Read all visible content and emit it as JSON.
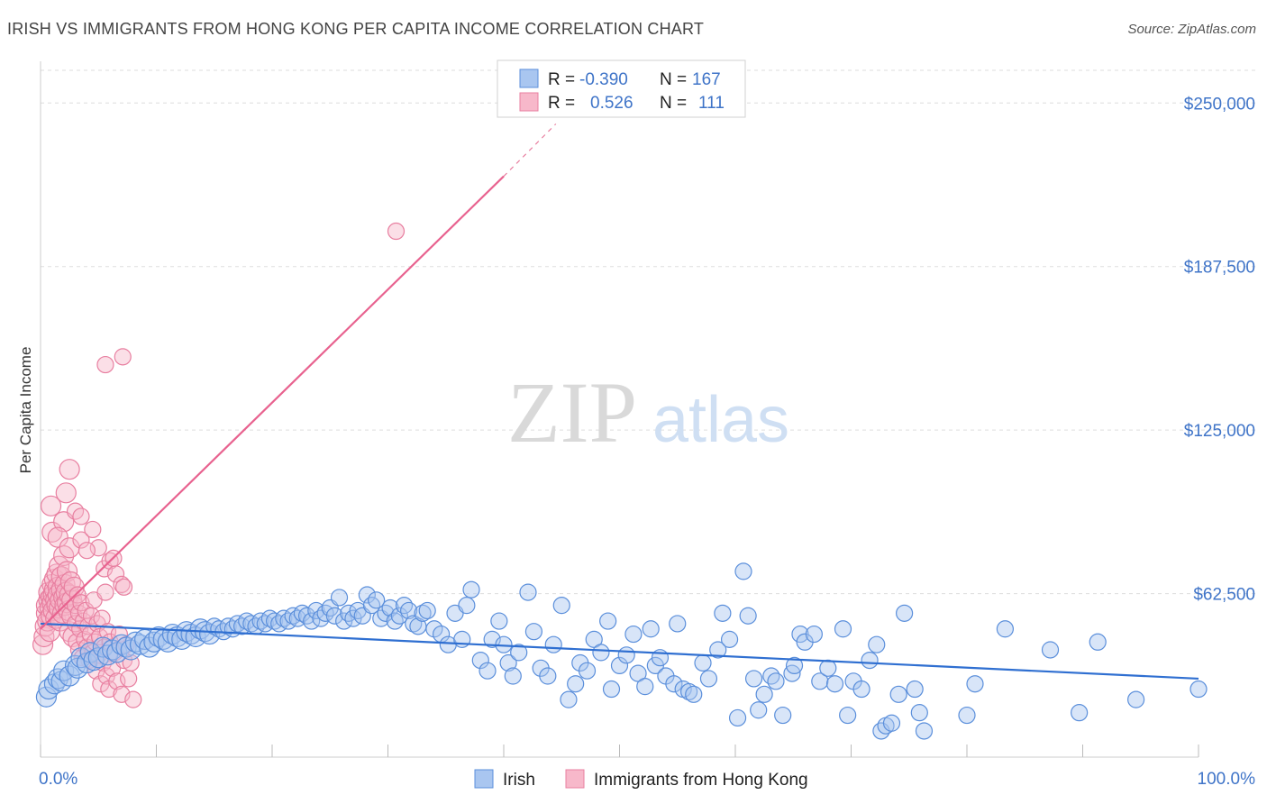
{
  "header": {
    "title": "IRISH VS IMMIGRANTS FROM HONG KONG PER CAPITA INCOME CORRELATION CHART",
    "source": "Source: ZipAtlas.com"
  },
  "watermark": {
    "zip": "ZIP",
    "atlas": "atlas"
  },
  "colors": {
    "irish_fill": "#a9c6f0",
    "irish_stroke": "#5b8fdb",
    "irish_line": "#2f6fd1",
    "hk_fill": "#f7b8ca",
    "hk_stroke": "#e87fa0",
    "hk_line": "#e8628f",
    "tick_text": "#3f74c8",
    "grid": "#dddddd"
  },
  "legend": {
    "rows": [
      {
        "r_label": "R =",
        "r_value": "-0.390",
        "n_label": "N =",
        "n_value": "167"
      },
      {
        "r_label": "R =",
        "r_value": "0.526",
        "n_label": "N =",
        "n_value": "111"
      }
    ],
    "bottom": [
      "Irish",
      "Immigrants from Hong Kong"
    ]
  },
  "chart_data": {
    "type": "scatter",
    "title": "IRISH VS IMMIGRANTS FROM HONG KONG PER CAPITA INCOME CORRELATION CHART",
    "xlabel": "",
    "ylabel": "Per Capita Income",
    "xlim": [
      0,
      100
    ],
    "ylim": [
      0,
      262500
    ],
    "x_tick_labels": [
      "0.0%",
      "100.0%"
    ],
    "y_ticks": [
      62500,
      125000,
      187500,
      250000
    ],
    "y_tick_labels": [
      "$62,500",
      "$125,000",
      "$187,500",
      "$250,000"
    ],
    "grid": "horizontal dashed",
    "legend_position": "top-center",
    "series": [
      {
        "name": "Irish",
        "r": -0.39,
        "n": 167,
        "trend": {
          "x": [
            0,
            100
          ],
          "y": [
            51000,
            30000
          ]
        },
        "points": [
          [
            0.5,
            23000
          ],
          [
            0.7,
            26000
          ],
          [
            1.2,
            28000
          ],
          [
            1.5,
            30000
          ],
          [
            1.8,
            29000
          ],
          [
            2.0,
            33000
          ],
          [
            2.5,
            31000
          ],
          [
            3.0,
            35000
          ],
          [
            3.2,
            34000
          ],
          [
            3.5,
            38000
          ],
          [
            4.0,
            36000
          ],
          [
            4.3,
            40000
          ],
          [
            4.6,
            37000
          ],
          [
            5.0,
            38000
          ],
          [
            5.4,
            42000
          ],
          [
            5.8,
            39000
          ],
          [
            6.2,
            41000
          ],
          [
            6.6,
            40000
          ],
          [
            7.0,
            43000
          ],
          [
            7.4,
            42000
          ],
          [
            7.8,
            41000
          ],
          [
            8.2,
            44000
          ],
          [
            8.6,
            43000
          ],
          [
            9.0,
            45000
          ],
          [
            9.4,
            42000
          ],
          [
            9.8,
            44000
          ],
          [
            10.2,
            46000
          ],
          [
            10.6,
            45000
          ],
          [
            11.0,
            44000
          ],
          [
            11.4,
            47000
          ],
          [
            11.8,
            46000
          ],
          [
            12.2,
            45000
          ],
          [
            12.6,
            48000
          ],
          [
            13.0,
            47000
          ],
          [
            13.4,
            46000
          ],
          [
            13.8,
            49000
          ],
          [
            14.2,
            48000
          ],
          [
            14.6,
            47000
          ],
          [
            15.0,
            50000
          ],
          [
            15.4,
            49000
          ],
          [
            15.8,
            48000
          ],
          [
            16.2,
            50000
          ],
          [
            16.6,
            49000
          ],
          [
            17.0,
            51000
          ],
          [
            17.4,
            50000
          ],
          [
            17.8,
            52000
          ],
          [
            18.2,
            51000
          ],
          [
            18.6,
            50000
          ],
          [
            19.0,
            52000
          ],
          [
            19.4,
            51000
          ],
          [
            19.8,
            53000
          ],
          [
            20.2,
            52000
          ],
          [
            20.6,
            51000
          ],
          [
            21.0,
            53000
          ],
          [
            21.4,
            52000
          ],
          [
            21.8,
            54000
          ],
          [
            22.2,
            53000
          ],
          [
            22.6,
            55000
          ],
          [
            23.0,
            54000
          ],
          [
            23.4,
            52000
          ],
          [
            23.8,
            56000
          ],
          [
            24.2,
            53000
          ],
          [
            24.6,
            55000
          ],
          [
            25.0,
            57000
          ],
          [
            25.4,
            54000
          ],
          [
            25.8,
            61000
          ],
          [
            26.2,
            52000
          ],
          [
            26.6,
            55000
          ],
          [
            27.0,
            53000
          ],
          [
            27.4,
            56000
          ],
          [
            27.8,
            54000
          ],
          [
            28.2,
            62000
          ],
          [
            28.6,
            58000
          ],
          [
            29.0,
            60000
          ],
          [
            29.4,
            53000
          ],
          [
            29.8,
            55000
          ],
          [
            30.2,
            57000
          ],
          [
            30.6,
            52000
          ],
          [
            31.0,
            54000
          ],
          [
            31.4,
            58000
          ],
          [
            31.8,
            56000
          ],
          [
            32.2,
            51000
          ],
          [
            32.6,
            50000
          ],
          [
            33.0,
            55000
          ],
          [
            33.4,
            56000
          ],
          [
            34.0,
            49000
          ],
          [
            34.6,
            47000
          ],
          [
            35.2,
            43000
          ],
          [
            35.8,
            55000
          ],
          [
            36.4,
            45000
          ],
          [
            36.8,
            58000
          ],
          [
            37.2,
            64000
          ],
          [
            38.0,
            37000
          ],
          [
            38.6,
            33000
          ],
          [
            39.0,
            45000
          ],
          [
            39.6,
            52000
          ],
          [
            40.0,
            43000
          ],
          [
            40.4,
            36000
          ],
          [
            40.8,
            31000
          ],
          [
            41.3,
            40000
          ],
          [
            42.1,
            63000
          ],
          [
            42.6,
            48000
          ],
          [
            43.2,
            34000
          ],
          [
            43.8,
            31000
          ],
          [
            44.3,
            43000
          ],
          [
            45.0,
            58000
          ],
          [
            45.6,
            22000
          ],
          [
            46.2,
            28000
          ],
          [
            46.6,
            36000
          ],
          [
            47.2,
            33000
          ],
          [
            47.8,
            45000
          ],
          [
            48.4,
            40000
          ],
          [
            49.0,
            52000
          ],
          [
            49.3,
            26000
          ],
          [
            50.0,
            35000
          ],
          [
            50.6,
            39000
          ],
          [
            51.2,
            47000
          ],
          [
            51.6,
            32000
          ],
          [
            52.2,
            27000
          ],
          [
            52.7,
            49000
          ],
          [
            53.1,
            35000
          ],
          [
            53.5,
            38000
          ],
          [
            54.0,
            31000
          ],
          [
            54.7,
            28000
          ],
          [
            55.0,
            51000
          ],
          [
            55.5,
            26000
          ],
          [
            56.0,
            25000
          ],
          [
            56.4,
            24000
          ],
          [
            57.2,
            36000
          ],
          [
            57.7,
            30000
          ],
          [
            58.5,
            41000
          ],
          [
            58.9,
            55000
          ],
          [
            59.5,
            45000
          ],
          [
            60.2,
            15000
          ],
          [
            60.7,
            71000
          ],
          [
            61.1,
            54000
          ],
          [
            61.6,
            30000
          ],
          [
            62.0,
            18000
          ],
          [
            62.5,
            24000
          ],
          [
            63.1,
            31000
          ],
          [
            63.5,
            29000
          ],
          [
            64.1,
            16000
          ],
          [
            64.9,
            32000
          ],
          [
            65.1,
            35000
          ],
          [
            65.6,
            47000
          ],
          [
            66.0,
            44000
          ],
          [
            66.8,
            47000
          ],
          [
            67.3,
            29000
          ],
          [
            68.0,
            34000
          ],
          [
            68.6,
            28000
          ],
          [
            69.3,
            49000
          ],
          [
            69.7,
            16000
          ],
          [
            70.2,
            29000
          ],
          [
            70.9,
            26000
          ],
          [
            71.6,
            37000
          ],
          [
            72.2,
            43000
          ],
          [
            72.6,
            10000
          ],
          [
            73.0,
            12000
          ],
          [
            73.5,
            13000
          ],
          [
            74.1,
            24000
          ],
          [
            74.6,
            55000
          ],
          [
            75.5,
            26000
          ],
          [
            75.9,
            17000
          ],
          [
            76.3,
            10000
          ],
          [
            80.0,
            16000
          ],
          [
            80.7,
            28000
          ],
          [
            83.3,
            49000
          ],
          [
            87.2,
            41000
          ],
          [
            89.7,
            17000
          ],
          [
            91.3,
            44000
          ],
          [
            94.6,
            22000
          ],
          [
            100.0,
            26000
          ]
        ]
      },
      {
        "name": "Immigrants from Hong Kong",
        "r": 0.526,
        "n": 111,
        "trend": {
          "x": [
            0,
            40
          ],
          "y": [
            49000,
            222000
          ]
        },
        "trend_dashed": {
          "x": [
            40,
            44.5
          ],
          "y": [
            222000,
            242000
          ]
        },
        "points": [
          [
            0.2,
            43000
          ],
          [
            0.3,
            46000
          ],
          [
            0.4,
            50000
          ],
          [
            0.5,
            55000
          ],
          [
            0.5,
            58000
          ],
          [
            0.6,
            52000
          ],
          [
            0.7,
            60000
          ],
          [
            0.7,
            63000
          ],
          [
            0.8,
            48000
          ],
          [
            0.8,
            57000
          ],
          [
            0.9,
            61000
          ],
          [
            0.9,
            54000
          ],
          [
            1.0,
            66000
          ],
          [
            1.0,
            59000
          ],
          [
            1.1,
            62000
          ],
          [
            1.1,
            56000
          ],
          [
            1.2,
            64000
          ],
          [
            1.2,
            68000
          ],
          [
            1.3,
            53000
          ],
          [
            1.3,
            60000
          ],
          [
            1.4,
            70000
          ],
          [
            1.4,
            58000
          ],
          [
            1.5,
            65000
          ],
          [
            1.5,
            62000
          ],
          [
            1.6,
            57000
          ],
          [
            1.6,
            73000
          ],
          [
            1.7,
            60000
          ],
          [
            1.7,
            52000
          ],
          [
            1.8,
            64000
          ],
          [
            1.8,
            69000
          ],
          [
            1.9,
            55000
          ],
          [
            2.0,
            61000
          ],
          [
            2.0,
            77000
          ],
          [
            2.1,
            58000
          ],
          [
            2.1,
            66000
          ],
          [
            2.2,
            63000
          ],
          [
            2.3,
            59000
          ],
          [
            2.3,
            71000
          ],
          [
            2.4,
            56000
          ],
          [
            2.5,
            62000
          ],
          [
            2.5,
            48000
          ],
          [
            2.6,
            67000
          ],
          [
            2.7,
            54000
          ],
          [
            2.7,
            60000
          ],
          [
            2.8,
            46000
          ],
          [
            2.9,
            65000
          ],
          [
            3.0,
            51000
          ],
          [
            3.0,
            58000
          ],
          [
            3.1,
            44000
          ],
          [
            3.2,
            62000
          ],
          [
            3.3,
            41000
          ],
          [
            3.3,
            55000
          ],
          [
            3.4,
            49000
          ],
          [
            3.5,
            59000
          ],
          [
            3.6,
            38000
          ],
          [
            3.7,
            52000
          ],
          [
            3.8,
            45000
          ],
          [
            3.9,
            56000
          ],
          [
            4.0,
            42000
          ],
          [
            4.1,
            50000
          ],
          [
            4.2,
            37000
          ],
          [
            4.3,
            47000
          ],
          [
            4.4,
            54000
          ],
          [
            4.5,
            40000
          ],
          [
            4.6,
            60000
          ],
          [
            4.7,
            44000
          ],
          [
            4.8,
            33000
          ],
          [
            4.9,
            51000
          ],
          [
            5.0,
            39000
          ],
          [
            5.1,
            46000
          ],
          [
            5.2,
            28000
          ],
          [
            5.3,
            53000
          ],
          [
            5.4,
            36000
          ],
          [
            5.5,
            42000
          ],
          [
            5.6,
            63000
          ],
          [
            5.7,
            31000
          ],
          [
            5.8,
            48000
          ],
          [
            5.9,
            26000
          ],
          [
            6.0,
            44000
          ],
          [
            6.2,
            34000
          ],
          [
            6.4,
            40000
          ],
          [
            6.6,
            29000
          ],
          [
            6.8,
            47000
          ],
          [
            7.0,
            24000
          ],
          [
            7.2,
            37000
          ],
          [
            7.4,
            43000
          ],
          [
            7.6,
            30000
          ],
          [
            7.8,
            36000
          ],
          [
            8.0,
            22000
          ],
          [
            1.0,
            86000
          ],
          [
            2.0,
            90000
          ],
          [
            3.0,
            94000
          ],
          [
            1.5,
            84000
          ],
          [
            2.5,
            80000
          ],
          [
            3.5,
            83000
          ],
          [
            4.5,
            87000
          ],
          [
            5.0,
            80000
          ],
          [
            5.5,
            72000
          ],
          [
            6.0,
            75000
          ],
          [
            6.5,
            70000
          ],
          [
            7.0,
            66000
          ],
          [
            2.2,
            101000
          ],
          [
            2.5,
            110000
          ],
          [
            0.9,
            96000
          ],
          [
            3.5,
            92000
          ],
          [
            4.0,
            79000
          ],
          [
            6.3,
            76000
          ],
          [
            7.2,
            65000
          ],
          [
            5.6,
            150000
          ],
          [
            7.1,
            153000
          ],
          [
            30.7,
            201000
          ]
        ]
      }
    ]
  }
}
